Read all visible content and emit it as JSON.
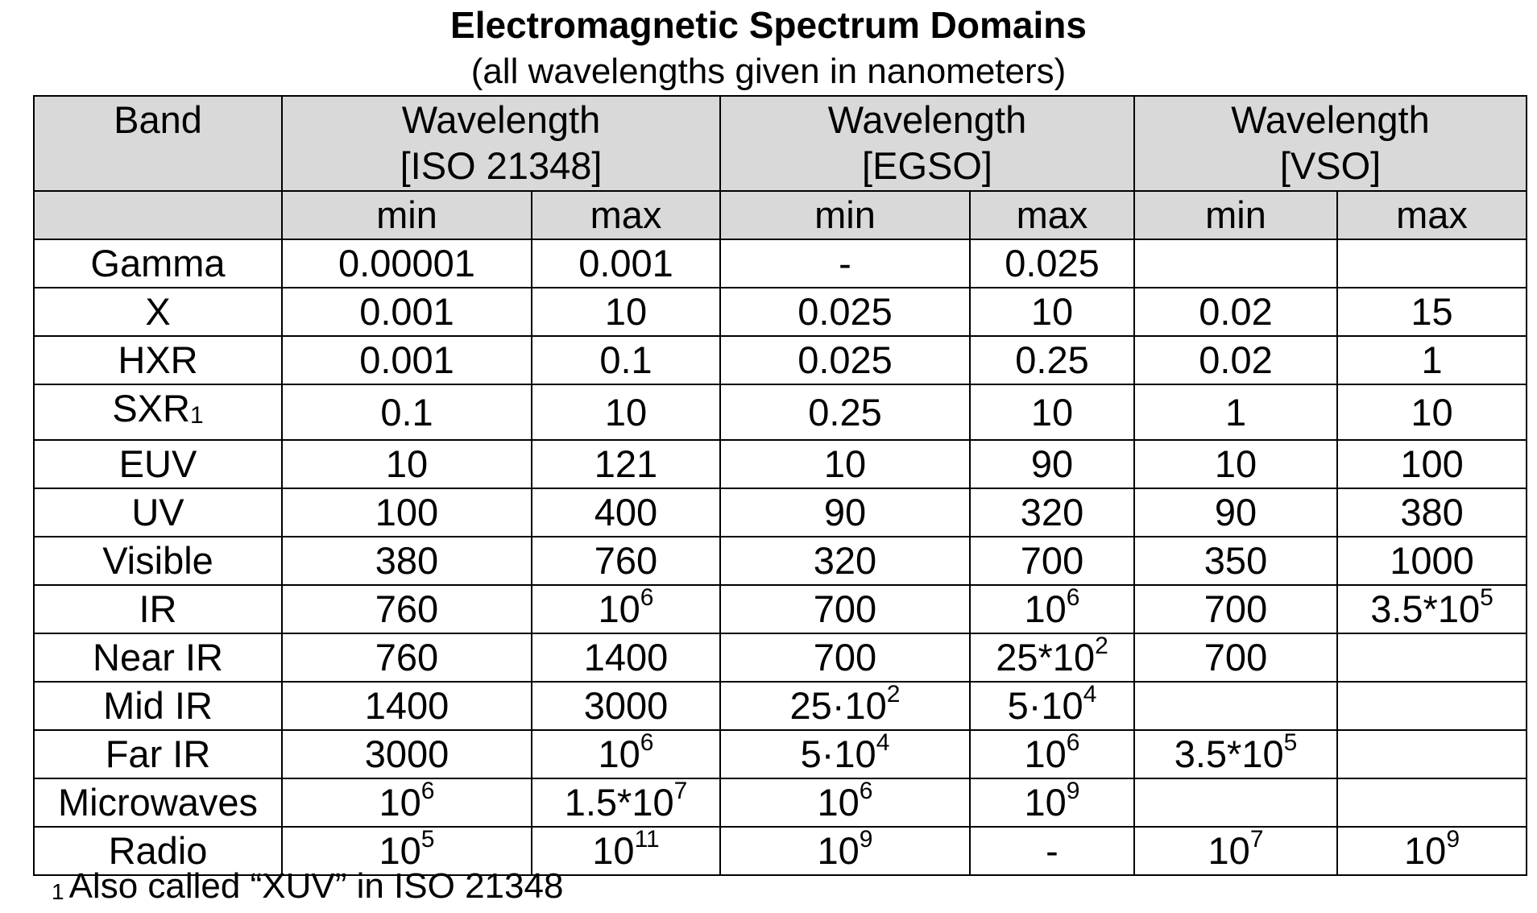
{
  "title": "Electromagnetic Spectrum Domains",
  "subtitle": "(all wavelengths given in nanometers)",
  "table": {
    "header_band": "Band",
    "groups": [
      {
        "line1": "Wavelength",
        "line2": "[ISO 21348]"
      },
      {
        "line1": "Wavelength",
        "line2": "[EGSO]"
      },
      {
        "line1": "Wavelength",
        "line2": "[VSO]"
      }
    ],
    "sub_min": "min",
    "sub_max": "max",
    "rows": [
      {
        "band": "Gamma",
        "band_sub": "",
        "cells": [
          {
            "b": "0.00001",
            "e": ""
          },
          {
            "b": "0.001",
            "e": ""
          },
          {
            "b": "-",
            "e": ""
          },
          {
            "b": "0.025",
            "e": ""
          },
          {
            "b": "",
            "e": ""
          },
          {
            "b": "",
            "e": ""
          }
        ]
      },
      {
        "band": "X",
        "band_sub": "",
        "cells": [
          {
            "b": "0.001",
            "e": ""
          },
          {
            "b": "10",
            "e": ""
          },
          {
            "b": "0.025",
            "e": ""
          },
          {
            "b": "10",
            "e": ""
          },
          {
            "b": "0.02",
            "e": ""
          },
          {
            "b": "15",
            "e": ""
          }
        ]
      },
      {
        "band": "HXR",
        "band_sub": "",
        "cells": [
          {
            "b": "0.001",
            "e": ""
          },
          {
            "b": "0.1",
            "e": ""
          },
          {
            "b": "0.025",
            "e": ""
          },
          {
            "b": "0.25",
            "e": ""
          },
          {
            "b": "0.02",
            "e": ""
          },
          {
            "b": "1",
            "e": ""
          }
        ]
      },
      {
        "band": "SXR",
        "band_sub": "1",
        "cells": [
          {
            "b": "0.1",
            "e": ""
          },
          {
            "b": "10",
            "e": ""
          },
          {
            "b": "0.25",
            "e": ""
          },
          {
            "b": "10",
            "e": ""
          },
          {
            "b": "1",
            "e": ""
          },
          {
            "b": "10",
            "e": ""
          }
        ]
      },
      {
        "band": "EUV",
        "band_sub": "",
        "cells": [
          {
            "b": "10",
            "e": ""
          },
          {
            "b": "121",
            "e": ""
          },
          {
            "b": "10",
            "e": ""
          },
          {
            "b": "90",
            "e": ""
          },
          {
            "b": "10",
            "e": ""
          },
          {
            "b": "100",
            "e": ""
          }
        ]
      },
      {
        "band": "UV",
        "band_sub": "",
        "cells": [
          {
            "b": "100",
            "e": ""
          },
          {
            "b": "400",
            "e": ""
          },
          {
            "b": "90",
            "e": ""
          },
          {
            "b": "320",
            "e": ""
          },
          {
            "b": "90",
            "e": ""
          },
          {
            "b": "380",
            "e": ""
          }
        ]
      },
      {
        "band": "Visible",
        "band_sub": "",
        "cells": [
          {
            "b": "380",
            "e": ""
          },
          {
            "b": "760",
            "e": ""
          },
          {
            "b": "320",
            "e": ""
          },
          {
            "b": "700",
            "e": ""
          },
          {
            "b": "350",
            "e": ""
          },
          {
            "b": "1000",
            "e": ""
          }
        ]
      },
      {
        "band": "IR",
        "band_sub": "",
        "cells": [
          {
            "b": "760",
            "e": ""
          },
          {
            "b": "10",
            "e": "6"
          },
          {
            "b": "700",
            "e": ""
          },
          {
            "b": "10",
            "e": "6"
          },
          {
            "b": "700",
            "e": ""
          },
          {
            "b": "3.5*10",
            "e": "5"
          }
        ]
      },
      {
        "band": "Near IR",
        "band_sub": "",
        "cells": [
          {
            "b": "760",
            "e": ""
          },
          {
            "b": "1400",
            "e": ""
          },
          {
            "b": "700",
            "e": ""
          },
          {
            "b": "25*10",
            "e": "2"
          },
          {
            "b": "700",
            "e": ""
          },
          {
            "b": "",
            "e": ""
          }
        ]
      },
      {
        "band": "Mid IR",
        "band_sub": "",
        "cells": [
          {
            "b": "1400",
            "e": ""
          },
          {
            "b": "3000",
            "e": ""
          },
          {
            "b": "25·10",
            "e": "2"
          },
          {
            "b": "5·10",
            "e": "4"
          },
          {
            "b": "",
            "e": ""
          },
          {
            "b": "",
            "e": ""
          }
        ]
      },
      {
        "band": "Far IR",
        "band_sub": "",
        "cells": [
          {
            "b": "3000",
            "e": ""
          },
          {
            "b": "10",
            "e": "6"
          },
          {
            "b": "5·10",
            "e": "4"
          },
          {
            "b": "10",
            "e": "6"
          },
          {
            "b": "3.5*10",
            "e": "5"
          },
          {
            "b": "",
            "e": ""
          }
        ]
      },
      {
        "band": "Microwaves",
        "band_sub": "",
        "cells": [
          {
            "b": "10",
            "e": "6"
          },
          {
            "b": "1.5*10",
            "e": "7"
          },
          {
            "b": "10",
            "e": "6"
          },
          {
            "b": "10",
            "e": "9"
          },
          {
            "b": "",
            "e": ""
          },
          {
            "b": "",
            "e": ""
          }
        ]
      },
      {
        "band": "Radio",
        "band_sub": "",
        "cells": [
          {
            "b": "10",
            "e": "5"
          },
          {
            "b": "10",
            "e": "11"
          },
          {
            "b": "10",
            "e": "9"
          },
          {
            "b": "-",
            "e": ""
          },
          {
            "b": "10",
            "e": "7"
          },
          {
            "b": "10",
            "e": "9"
          }
        ]
      }
    ]
  },
  "footnote": {
    "mark": "1",
    "text": "Also called “XUV” in ISO 21348"
  }
}
